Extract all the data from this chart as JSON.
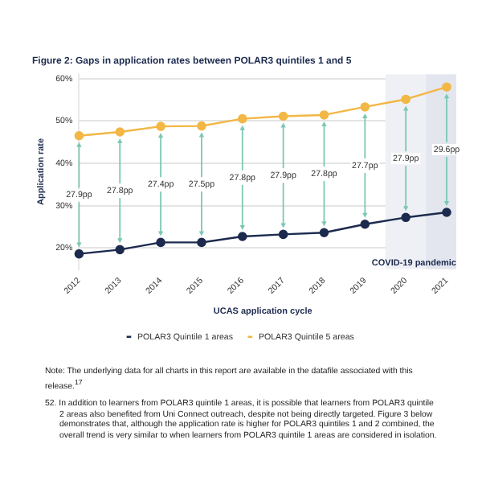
{
  "chart_data": {
    "type": "line",
    "title": "Figure 2: Gaps in application rates between POLAR3 quintiles 1 and 5",
    "xlabel": "UCAS application cycle",
    "ylabel": "Application rate",
    "categories": [
      "2012",
      "2013",
      "2014",
      "2015",
      "2016",
      "2017",
      "2018",
      "2019",
      "2020",
      "2021"
    ],
    "series": [
      {
        "name": "POLAR3 Quintile 1 areas",
        "color": "#1c2a4e",
        "values": [
          18.6,
          19.6,
          21.3,
          21.3,
          22.7,
          23.2,
          23.6,
          25.6,
          27.2,
          28.4
        ]
      },
      {
        "name": "POLAR3 Quintile 5 areas",
        "color": "#f2b744",
        "values": [
          46.5,
          47.4,
          48.7,
          48.8,
          50.5,
          51.1,
          51.4,
          53.3,
          55.1,
          58.0
        ]
      }
    ],
    "ylim": [
      15,
      61
    ],
    "yticks": [
      {
        "value": 20,
        "label": "20%"
      },
      {
        "value": 30,
        "label": "30%"
      },
      {
        "value": 40,
        "label": "40%"
      },
      {
        "value": 50,
        "label": "50%"
      },
      {
        "value": 60,
        "label": "60%"
      }
    ],
    "grid": "y",
    "legend": "bottom",
    "marker": "circle",
    "line_style": "solid",
    "bands": [
      {
        "axis": "x",
        "from": "2020",
        "to": "2021",
        "label": "COVID-19 pandemic",
        "color": "#eef0f5"
      },
      {
        "axis": "x",
        "from": "2021",
        "to": "2021",
        "color": "#e3e6ee"
      }
    ],
    "annotations": [
      {
        "text": "27.9pp",
        "x": "2012",
        "y": 32.5
      },
      {
        "text": "27.8pp",
        "x": "2013",
        "y": 33.5
      },
      {
        "text": "27.4pp",
        "x": "2014",
        "y": 35
      },
      {
        "text": "27.5pp",
        "x": "2015",
        "y": 35
      },
      {
        "text": "27.8pp",
        "x": "2016",
        "y": 36.6
      },
      {
        "text": "27.9pp",
        "x": "2017",
        "y": 37.1
      },
      {
        "text": "27.8pp",
        "x": "2018",
        "y": 37.5
      },
      {
        "text": "27.7pp",
        "x": "2019",
        "y": 39.4
      },
      {
        "text": "27.9pp",
        "x": "2020",
        "y": 41.1
      },
      {
        "text": "29.6pp",
        "x": "2021",
        "y": 43.2
      },
      "Note: The underlying data for all charts in this report are available in the datafile associated with this release.$^{17}$",
      "52. In addition to learners from POLAR3 quintile 1 areas, it is possible that learners from POLAR3 quintile 2 areas also benefited from Uni Connect outreach, despite not being directly targeted. Figure 3 below demonstrates that, although the application rate is higher for POLAR3 quintiles 1 and 2 combined, the overall trend is very similar to when learners from POLAR3 quintile 1 areas are considered in isolation."
    ]
  }
}
